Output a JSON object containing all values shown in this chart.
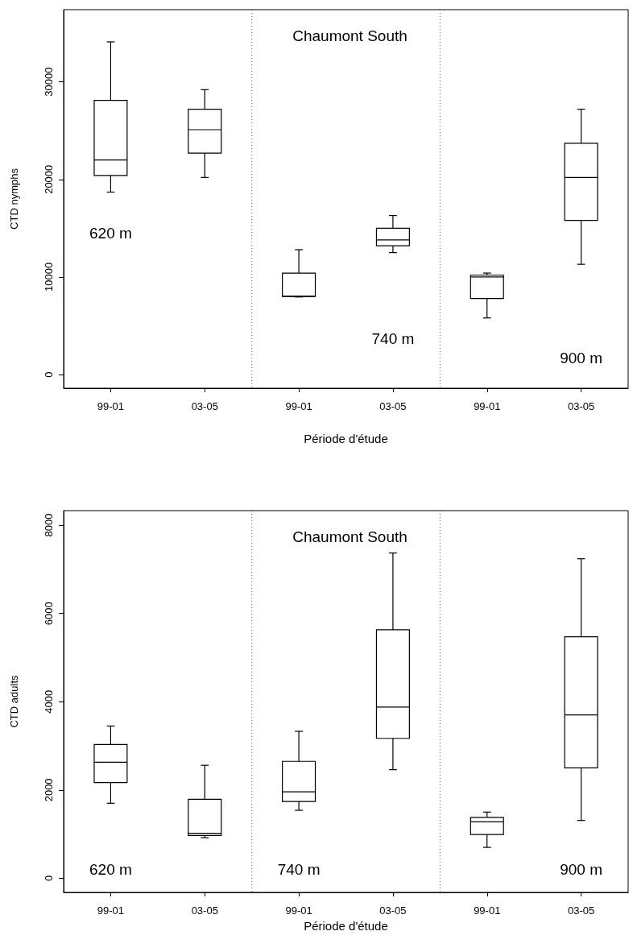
{
  "chart_data": [
    {
      "type": "box",
      "title": "Chaumont South",
      "xlabel": "Période d'étude",
      "ylabel": "CTD nymphs",
      "categories": [
        "99-01",
        "03-05",
        "99-01",
        "03-05",
        "99-01",
        "03-05"
      ],
      "ylim": [
        -1400,
        37400
      ],
      "yticks": [
        0,
        10000,
        20000,
        30000
      ],
      "color": "#000000",
      "boxes": [
        {
          "low": 18700,
          "q1": 20400,
          "median": 22000,
          "q3": 28100,
          "high": 34100
        },
        {
          "low": 20200,
          "q1": 22700,
          "median": 25100,
          "q3": 27200,
          "high": 29200
        },
        {
          "low": 7950,
          "q1": 8000,
          "median": 8050,
          "q3": 10400,
          "high": 12800
        },
        {
          "low": 12500,
          "q1": 13200,
          "median": 13800,
          "q3": 15000,
          "high": 16300
        },
        {
          "low": 5800,
          "q1": 7800,
          "median": 10000,
          "q3": 10200,
          "high": 10400
        },
        {
          "low": 11300,
          "q1": 15800,
          "median": 20200,
          "q3": 23700,
          "high": 27200
        }
      ],
      "annotations": [
        "620 m",
        "740 m",
        "900 m"
      ]
    },
    {
      "type": "box",
      "title": "Chaumont South",
      "xlabel": "Période d'étude",
      "ylabel": "CTD adults",
      "categories": [
        "99-01",
        "03-05",
        "99-01",
        "03-05",
        "99-01",
        "03-05"
      ],
      "ylim": [
        -320,
        8330
      ],
      "yticks": [
        0,
        2000,
        4000,
        6000,
        8000
      ],
      "color": "#000000",
      "boxes": [
        {
          "low": 1700,
          "q1": 2170,
          "median": 2630,
          "q3": 3030,
          "high": 3450
        },
        {
          "low": 920,
          "q1": 970,
          "median": 1020,
          "q3": 1790,
          "high": 2560
        },
        {
          "low": 1540,
          "q1": 1740,
          "median": 1960,
          "q3": 2650,
          "high": 3330
        },
        {
          "low": 2460,
          "q1": 3170,
          "median": 3880,
          "q3": 5630,
          "high": 7370
        },
        {
          "low": 700,
          "q1": 990,
          "median": 1280,
          "q3": 1380,
          "high": 1500
        },
        {
          "low": 1310,
          "q1": 2500,
          "median": 3700,
          "q3": 5470,
          "high": 7240
        }
      ],
      "annotations": [
        "620 m",
        "740 m",
        "900 m"
      ]
    }
  ]
}
